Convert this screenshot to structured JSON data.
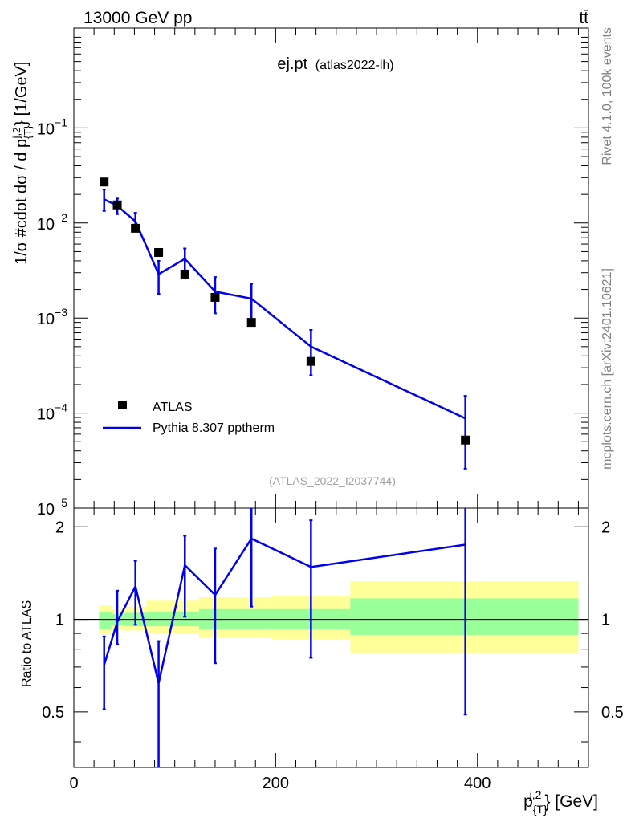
{
  "header": {
    "left": "13000 GeV pp",
    "right": "tt̄"
  },
  "side": {
    "rivet": "Rivet 4.1.0,  100k events",
    "source": "mcplots.cern.ch [arXiv:2401.10621]"
  },
  "chart_data": {
    "type": "line",
    "title": "ej.pt",
    "title_sub": "(atlas2022-lh)",
    "watermark": "(ATLAS_2022_I2037744)",
    "xlabel": "p_{T}^{j,2} [GeV]",
    "ylabel": "1/σ #cdot dσ / d p_{T}^{j,2} [1/GeV]",
    "ratio_ylabel": "Ratio to ATLAS",
    "xlim": [
      0,
      510
    ],
    "ylim": [
      1e-05,
      1
    ],
    "ratio_ylim": [
      0.33,
      2.3
    ],
    "x_ticks": [
      0,
      200,
      400
    ],
    "x_tick_labels": [
      "0",
      "200",
      "400"
    ],
    "y_ticks": [
      1e-05,
      0.0001,
      0.001,
      0.01,
      0.1
    ],
    "y_tick_labels": [
      {
        "base": "10",
        "exp": "−5"
      },
      {
        "base": "10",
        "exp": "−4"
      },
      {
        "base": "10",
        "exp": "−3"
      },
      {
        "base": "10",
        "exp": "−2"
      },
      {
        "base": "10",
        "exp": "−1"
      }
    ],
    "ratio_ticks": [
      0.5,
      1,
      2
    ],
    "ratio_tick_labels": [
      "0.5",
      "1",
      "2"
    ],
    "legend": [
      {
        "label": "ATLAS",
        "kind": "marker"
      },
      {
        "label": "Pythia 8.307 pptherm",
        "kind": "line"
      }
    ],
    "data_points": {
      "name": "ATLAS",
      "x": [
        30,
        43,
        61,
        84,
        110,
        140,
        176,
        235,
        388
      ],
      "y": [
        0.027,
        0.0155,
        0.0088,
        0.0049,
        0.0029,
        0.00165,
        0.0009,
        0.00035,
        5.2e-05
      ]
    },
    "mc": {
      "name": "Pythia 8.307 pptherm",
      "color": "#0000ee",
      "x": [
        30,
        43,
        61,
        84,
        110,
        140,
        176,
        235,
        388
      ],
      "y": [
        0.0178,
        0.0152,
        0.0104,
        0.0029,
        0.0042,
        0.0019,
        0.0016,
        0.0005,
        8.8e-05
      ],
      "y_err_lo": [
        0.0134,
        0.0124,
        0.0085,
        0.0018,
        0.003,
        0.00112,
        0.00095,
        0.00025,
        2.6e-05
      ],
      "y_err_hi": [
        0.0225,
        0.0181,
        0.0128,
        0.004,
        0.0054,
        0.0027,
        0.0023,
        0.00075,
        0.000152
      ]
    },
    "ratio": {
      "values": [
        0.71,
        0.98,
        1.28,
        0.62,
        1.5,
        1.2,
        1.83,
        1.48,
        1.75
      ],
      "err_lo": [
        0.51,
        0.83,
        0.96,
        0.33,
        1.02,
        0.72,
        1.1,
        0.75,
        0.49
      ],
      "err_hi": [
        0.88,
        1.24,
        1.55,
        0.85,
        1.87,
        1.7,
        2.3,
        2.1,
        2.3
      ]
    },
    "uncertainty_bands": {
      "edges": [
        25,
        37,
        50,
        72,
        98,
        124,
        158,
        196,
        274,
        500
      ],
      "inner_lo": [
        0.93,
        0.96,
        0.95,
        0.95,
        0.95,
        0.93,
        0.93,
        0.93,
        0.89
      ],
      "inner_hi": [
        1.06,
        1.04,
        1.05,
        1.06,
        1.06,
        1.08,
        1.08,
        1.08,
        1.17
      ],
      "outer_lo": [
        0.9,
        0.92,
        0.92,
        0.9,
        0.9,
        0.87,
        0.87,
        0.86,
        0.78
      ],
      "outer_hi": [
        1.11,
        1.08,
        1.1,
        1.15,
        1.15,
        1.18,
        1.18,
        1.19,
        1.33
      ],
      "inner_color": "#99ff99",
      "outer_color": "#ffff99"
    }
  }
}
